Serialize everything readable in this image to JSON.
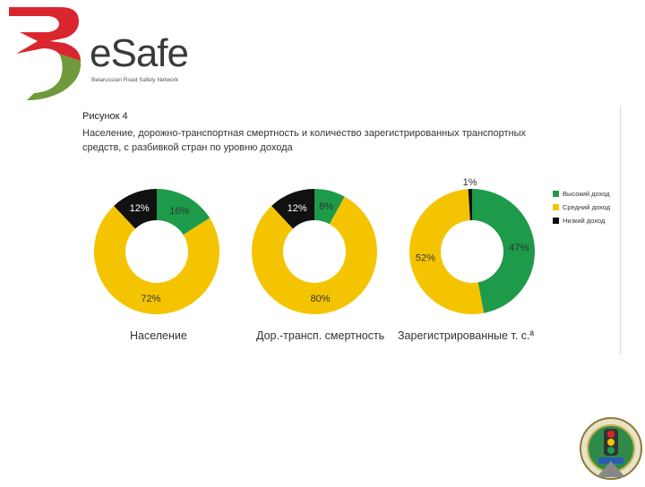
{
  "brand": {
    "name": "eSafe",
    "tagline": "Belarussian Road Safety Network",
    "colors": {
      "red": "#d9262e",
      "green": "#6e9a3b",
      "text": "#3a3a3a"
    }
  },
  "figure": {
    "label": "Рисунок 4",
    "title": "Население, дорожно-транспортная смертность и количество зарегистрированных транспортных средств, с разбивкой стран по уровню дохода"
  },
  "legend": [
    {
      "label": "Высокий доход",
      "color": "#1e9a4b"
    },
    {
      "label": "Средний доход",
      "color": "#f5c400"
    },
    {
      "label": "Низкий доход",
      "color": "#111111"
    }
  ],
  "chart_data": [
    {
      "type": "pie",
      "title": "Население",
      "categories": [
        "Высокий доход",
        "Средний доход",
        "Низкий доход"
      ],
      "values": [
        16,
        72,
        12
      ],
      "labels": [
        "16%",
        "72%",
        "12%"
      ]
    },
    {
      "type": "pie",
      "title": "Дор.-трансп. смертность",
      "categories": [
        "Высокий доход",
        "Средний доход",
        "Низкий доход"
      ],
      "values": [
        8,
        80,
        12
      ],
      "labels": [
        "8%",
        "80%",
        "12%"
      ]
    },
    {
      "type": "pie",
      "title": "Зарегистрированные т. с.ª",
      "categories": [
        "Высокий доход",
        "Средний доход",
        "Низкий доход"
      ],
      "values": [
        47,
        52,
        1
      ],
      "labels": [
        "47%",
        "52%",
        "1%"
      ]
    }
  ],
  "emblem": {
    "icon": "traffic-police-emblem-icon"
  }
}
